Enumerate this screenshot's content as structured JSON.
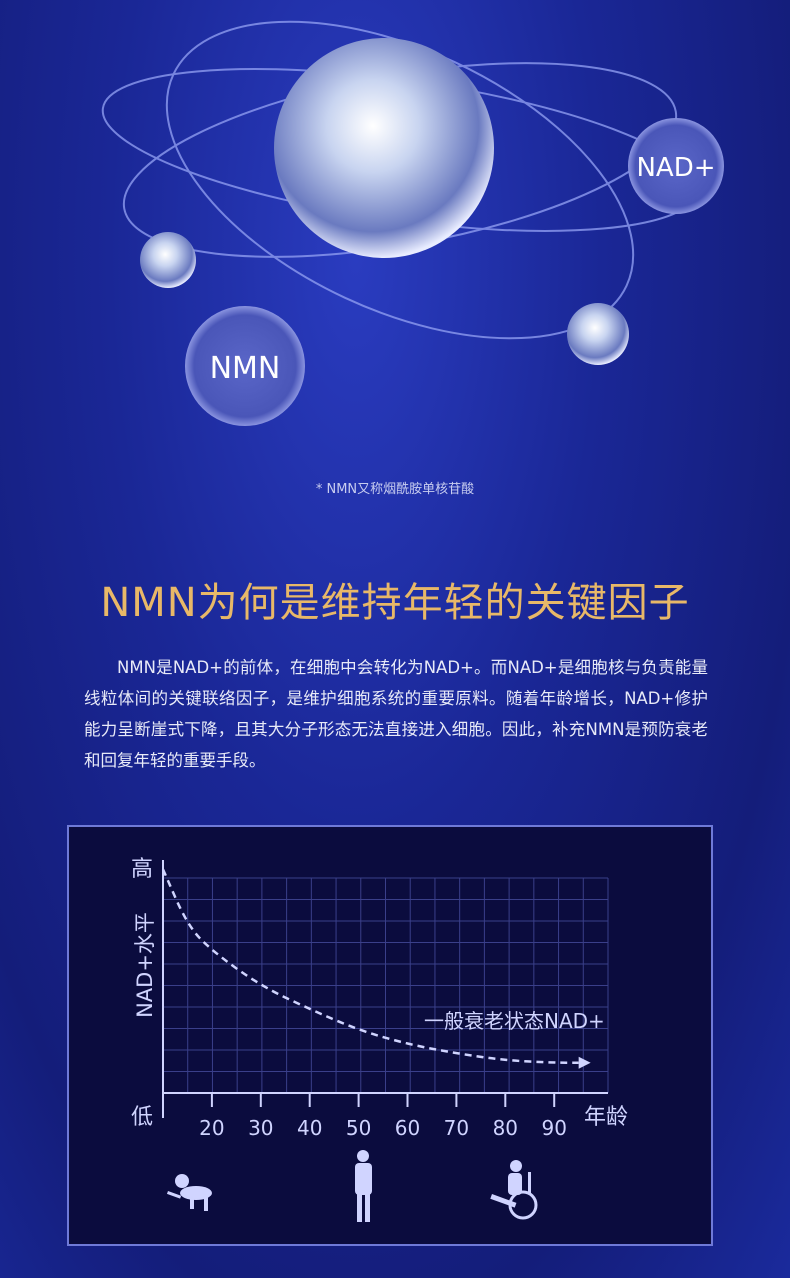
{
  "hero": {
    "bubble_nad": "NAD+",
    "bubble_nmn": "NMN"
  },
  "note": "* NMN又称烟酰胺单核苷酸",
  "title": "NMN为何是维持年轻的关键因子",
  "body": "NMN是NAD+的前体，在细胞中会转化为NAD+。而NAD+是细胞核与负责能量线粒体间的关键联络因子，是维护细胞系统的重要原料。随着年龄增长，NAD+修护能力呈断崖式下降，且其大分子形态无法直接进入细胞。因此，补充NMN是预防衰老和回复年轻的重要手段。",
  "colors": {
    "title": "#e8b868",
    "background": "#1a2796",
    "chart_bg": "#0b0c3e",
    "chart_line": "#d0d4ff"
  },
  "chart_data": {
    "type": "line",
    "ylabel": "NAD+水平",
    "y_high_label": "高",
    "y_low_label": "低",
    "xlabel": "年龄",
    "x_ticks": [
      "20",
      "30",
      "40",
      "50",
      "60",
      "70",
      "80",
      "90"
    ],
    "xlim": [
      10,
      101
    ],
    "ylim": [
      0,
      1
    ],
    "grid": true,
    "series": [
      {
        "name": "一般衰老状态NAD+",
        "style": "dashed-arrow",
        "x": [
          10,
          15,
          20,
          30,
          40,
          50,
          60,
          70,
          80,
          90,
          95
        ],
        "y": [
          0.96,
          0.72,
          0.61,
          0.46,
          0.36,
          0.27,
          0.21,
          0.17,
          0.14,
          0.13,
          0.13
        ]
      }
    ],
    "icons": [
      "baby-crawling-icon",
      "adult-standing-icon",
      "elderly-wheelchair-icon"
    ]
  }
}
